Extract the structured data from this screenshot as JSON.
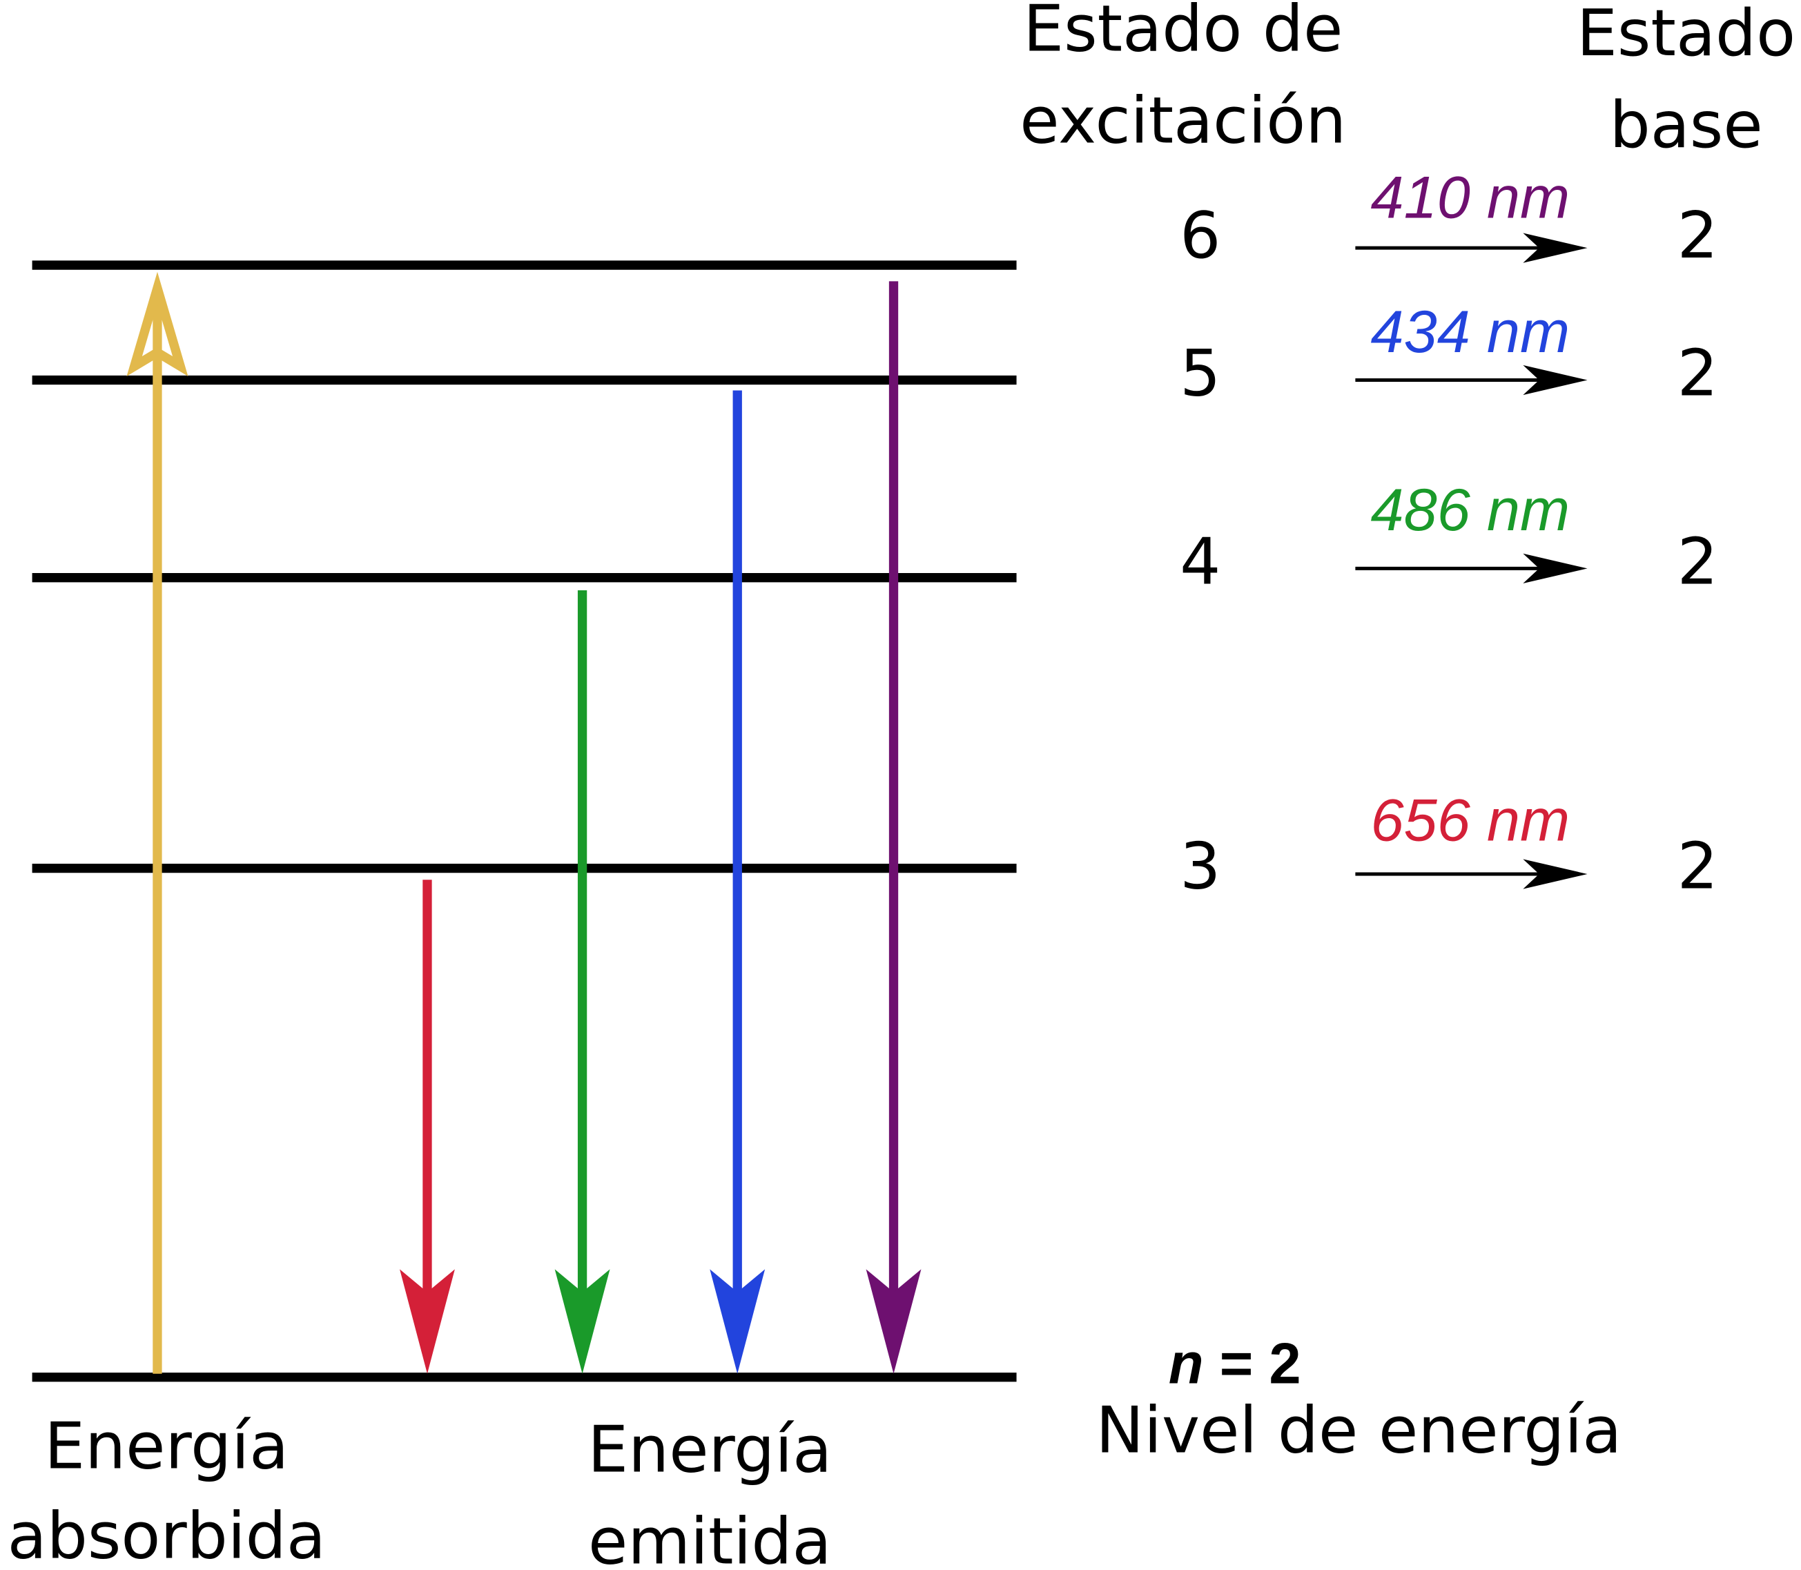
{
  "excitation_header": [
    "Estado de",
    "excitación"
  ],
  "ground_header": [
    "Estado",
    "base"
  ],
  "transitions": [
    {
      "from": "6",
      "wavelength": "410 nm",
      "to": "2",
      "color": "#6e1070"
    },
    {
      "from": "5",
      "wavelength": "434 nm",
      "to": "2",
      "color": "#2244dd"
    },
    {
      "from": "4",
      "wavelength": "486 nm",
      "to": "2",
      "color": "#1a9a2a"
    },
    {
      "from": "3",
      "wavelength": "656 nm",
      "to": "2",
      "color": "#d42038"
    }
  ],
  "ground_level": {
    "symbol": "n",
    "value": "= 2",
    "caption": "Nivel de energía"
  },
  "absorbed_label": [
    "Energía",
    "absorbida"
  ],
  "emitted_label": [
    "Energía",
    "emitida"
  ]
}
